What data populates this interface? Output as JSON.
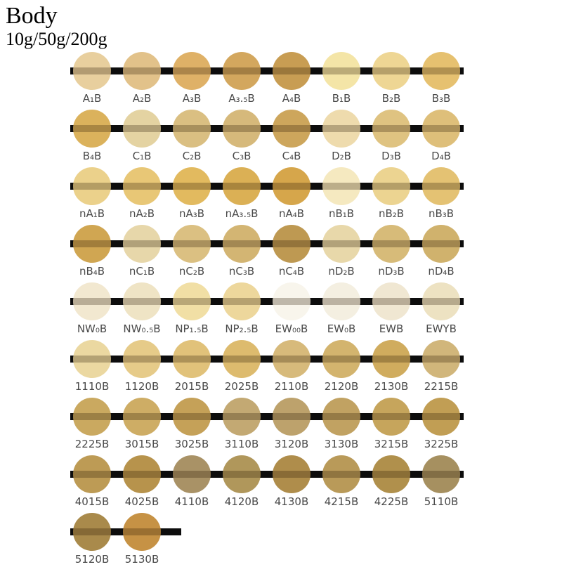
{
  "header": {
    "title": "Body",
    "subtitle": "10g/50g/200g"
  },
  "colors": {
    "bar": "#0d0d0d",
    "label": "#4a4a4a",
    "band_overlay": "rgba(40,22,0,0.28)",
    "background": "#ffffff"
  },
  "chart_data": {
    "type": "table",
    "title": "Body porcelain shade swatches",
    "rows": [
      {
        "swatches": [
          {
            "label": "A₁B",
            "color": "#e8cf9e"
          },
          {
            "label": "A₂B",
            "color": "#e2c28a"
          },
          {
            "label": "A₃B",
            "color": "#dfb167"
          },
          {
            "label": "A₃.₅B",
            "color": "#d3a75e"
          },
          {
            "label": "A₄B",
            "color": "#c89d53"
          },
          {
            "label": "B₁B",
            "color": "#f4e5a7"
          },
          {
            "label": "B₂B",
            "color": "#eed694"
          },
          {
            "label": "B₃B",
            "color": "#e6c170"
          }
        ]
      },
      {
        "swatches": [
          {
            "label": "B₄B",
            "color": "#dbb25c"
          },
          {
            "label": "C₁B",
            "color": "#e4d3a2"
          },
          {
            "label": "C₂B",
            "color": "#dabf82"
          },
          {
            "label": "C₃B",
            "color": "#d6b97b"
          },
          {
            "label": "C₄B",
            "color": "#cda65c"
          },
          {
            "label": "D₂B",
            "color": "#eedbad"
          },
          {
            "label": "D₃B",
            "color": "#dfc381"
          },
          {
            "label": "D₄B",
            "color": "#debf7a"
          }
        ]
      },
      {
        "swatches": [
          {
            "label": "nA₁B",
            "color": "#ebd18b"
          },
          {
            "label": "nA₂B",
            "color": "#e8c776"
          },
          {
            "label": "nA₃B",
            "color": "#e2ba5f"
          },
          {
            "label": "nA₃.₅B",
            "color": "#dbb055"
          },
          {
            "label": "nA₄B",
            "color": "#d6a64b"
          },
          {
            "label": "nB₁B",
            "color": "#f5e9c0"
          },
          {
            "label": "nB₂B",
            "color": "#ecd491"
          },
          {
            "label": "nB₃B",
            "color": "#e4c273"
          }
        ]
      },
      {
        "swatches": [
          {
            "label": "nB₄B",
            "color": "#d0a652"
          },
          {
            "label": "nC₁B",
            "color": "#e7d7aa"
          },
          {
            "label": "nC₂B",
            "color": "#dbc082"
          },
          {
            "label": "nC₃B",
            "color": "#d3b573"
          },
          {
            "label": "nC₄B",
            "color": "#be9952"
          },
          {
            "label": "nD₂B",
            "color": "#e8d8aa"
          },
          {
            "label": "nD₃B",
            "color": "#d7bb79"
          },
          {
            "label": "nD₄B",
            "color": "#d0b26d"
          }
        ]
      },
      {
        "swatches": [
          {
            "label": "NW₀B",
            "color": "#f2e8d0"
          },
          {
            "label": "NW₀.₅B",
            "color": "#efe4c5"
          },
          {
            "label": "NP₁.₅B",
            "color": "#f1dfa5"
          },
          {
            "label": "NP₂.₅B",
            "color": "#edd79c"
          },
          {
            "label": "EW₀₀B",
            "color": "#f8f5ec"
          },
          {
            "label": "EW₀B",
            "color": "#f4efe1"
          },
          {
            "label": "EWB",
            "color": "#f0e7d2"
          },
          {
            "label": "EWYB",
            "color": "#ede2c2"
          }
        ]
      },
      {
        "swatches": [
          {
            "label": "1110B",
            "color": "#ebd8a1"
          },
          {
            "label": "1120B",
            "color": "#e6cb89"
          },
          {
            "label": "2015B",
            "color": "#e1c27a"
          },
          {
            "label": "2025B",
            "color": "#ddbb6e"
          },
          {
            "label": "2110B",
            "color": "#d7ba7b"
          },
          {
            "label": "2120B",
            "color": "#d3b46e"
          },
          {
            "label": "2130B",
            "color": "#d0ac5e"
          },
          {
            "label": "2215B",
            "color": "#d1b67b"
          }
        ]
      },
      {
        "swatches": [
          {
            "label": "2225B",
            "color": "#caa960"
          },
          {
            "label": "3015B",
            "color": "#cead65"
          },
          {
            "label": "3025B",
            "color": "#c5a158"
          },
          {
            "label": "3110B",
            "color": "#c3a973"
          },
          {
            "label": "3120B",
            "color": "#bda26c"
          },
          {
            "label": "3130B",
            "color": "#c1a262"
          },
          {
            "label": "3215B",
            "color": "#c6a55c"
          },
          {
            "label": "3225B",
            "color": "#c19e54"
          }
        ]
      },
      {
        "swatches": [
          {
            "label": "4015B",
            "color": "#bd9b55"
          },
          {
            "label": "4025B",
            "color": "#b7934c"
          },
          {
            "label": "4110B",
            "color": "#a99266"
          },
          {
            "label": "4120B",
            "color": "#b0975b"
          },
          {
            "label": "4130B",
            "color": "#af8d4b"
          },
          {
            "label": "4215B",
            "color": "#b99a59"
          },
          {
            "label": "4225B",
            "color": "#b0904c"
          },
          {
            "label": "5110B",
            "color": "#a69060"
          }
        ]
      },
      {
        "swatches": [
          {
            "label": "5120B",
            "color": "#a98a4b"
          },
          {
            "label": "5130B",
            "color": "#c69245"
          }
        ]
      }
    ]
  }
}
